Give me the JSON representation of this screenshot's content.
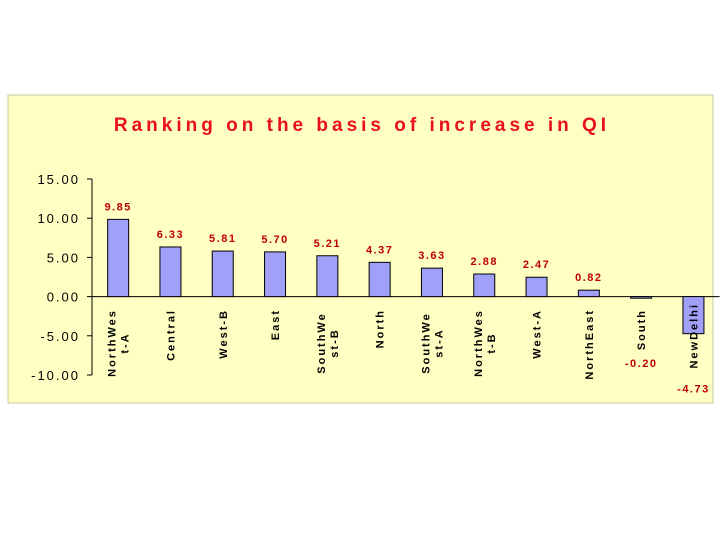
{
  "chart_data": {
    "type": "bar",
    "title": "Ranking on the basis of increase in QI",
    "categories": [
      [
        "NorthWes",
        "t-A"
      ],
      [
        "Central"
      ],
      [
        "West-B"
      ],
      [
        "East"
      ],
      [
        "SouthWe",
        "st-B"
      ],
      [
        "North"
      ],
      [
        "SouthWe",
        "st-A"
      ],
      [
        "NorthWes",
        "t-B"
      ],
      [
        "West-A"
      ],
      [
        "NorthEast"
      ],
      [
        "South"
      ],
      [
        "NewDelhi"
      ]
    ],
    "values": [
      9.85,
      6.33,
      5.81,
      5.7,
      5.21,
      4.37,
      3.63,
      2.88,
      2.47,
      0.82,
      -0.2,
      -4.73
    ],
    "data_labels": [
      "9.85",
      "6.33",
      "5.81",
      "5.70",
      "5.21",
      "4.37",
      "3.63",
      "2.88",
      "2.47",
      "0.82",
      "-0.20",
      "-4.73"
    ],
    "yticks": [
      15,
      10,
      5,
      0,
      -5,
      -10
    ],
    "ytick_labels": [
      "15.00",
      "10.00",
      "5.00",
      "0.00",
      "-5.00",
      "-10.00"
    ],
    "ylim": [
      -10,
      15
    ],
    "grid": false,
    "colors": {
      "plot_background": "#ffffc4",
      "bar_fill": "#a0a0f8",
      "bar_stroke": "#000000",
      "title": "#e8101b",
      "data_label": "#c00000"
    }
  }
}
